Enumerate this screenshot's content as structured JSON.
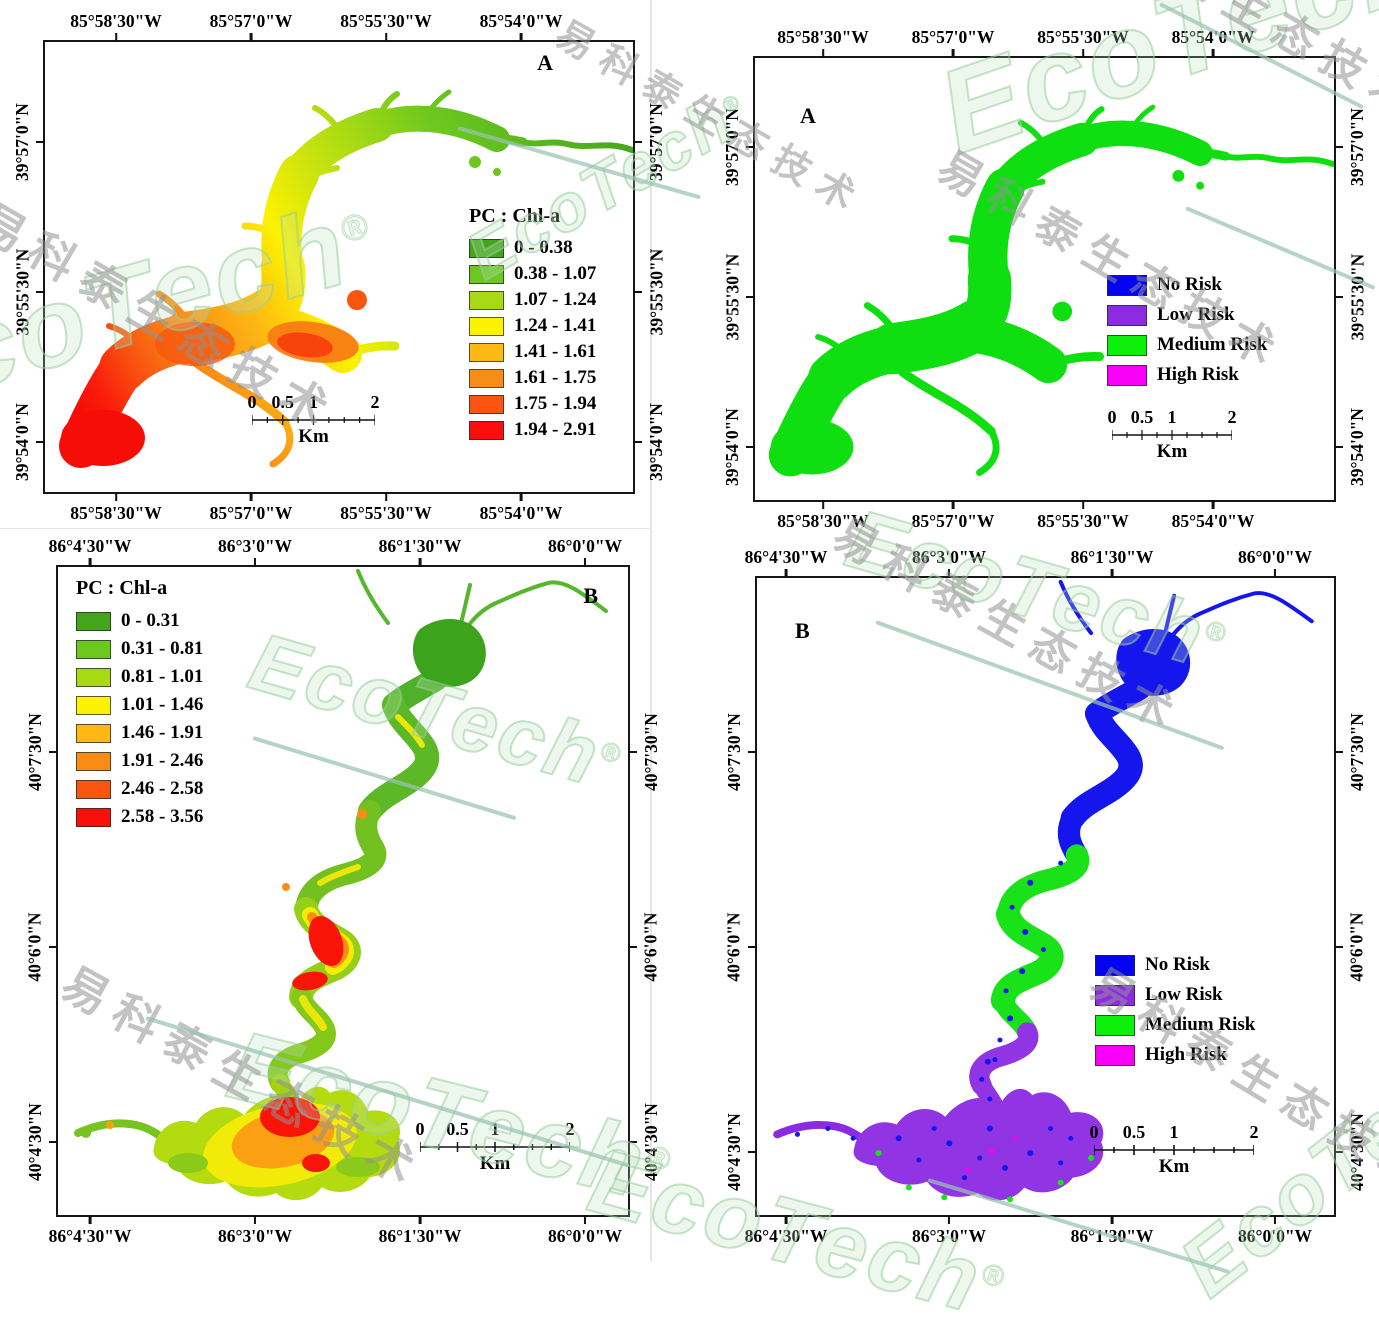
{
  "figure": {
    "watermark_text": "EcoTech",
    "watermark_reg": "®",
    "watermark_cn": "易科泰生态技术"
  },
  "scalebar": {
    "unit": "Km",
    "ticks": [
      {
        "label": "0",
        "pos": "0%"
      },
      {
        "label": "0.5",
        "pos": "25%"
      },
      {
        "label": "1",
        "pos": "50%"
      },
      {
        "label": "2",
        "pos": "100%"
      }
    ]
  },
  "panels": {
    "top_left": {
      "letter": "A",
      "legend_title": "PC : Chl-a",
      "legend_items": [
        {
          "range": "0 - 0.38",
          "color": "#44a51c"
        },
        {
          "range": "0.38 - 1.07",
          "color": "#6cc71e"
        },
        {
          "range": "1.07 - 1.24",
          "color": "#a8da14"
        },
        {
          "range": "1.24 - 1.41",
          "color": "#fcf200"
        },
        {
          "range": "1.41 - 1.61",
          "color": "#fdb813"
        },
        {
          "range": "1.61 - 1.75",
          "color": "#f98c16"
        },
        {
          "range": "1.75 - 1.94",
          "color": "#f95410"
        },
        {
          "range": "1.94 - 2.91",
          "color": "#fa0f0c"
        }
      ],
      "lon_labels": [
        "85°58'30\"W",
        "85°57'0\"W",
        "85°55'30\"W",
        "85°54'0\"W"
      ],
      "lat_labels": [
        "39°57'0\"N",
        "39°55'30\"N",
        "39°54'0\"N"
      ]
    },
    "top_right": {
      "letter": "A",
      "legend_items": [
        {
          "label": "No Risk",
          "color": "#0404f2"
        },
        {
          "label": "Low Risk",
          "color": "#8c2be2"
        },
        {
          "label": "Medium Risk",
          "color": "#0cf00c"
        },
        {
          "label": "High Risk",
          "color": "#f800f8"
        }
      ],
      "lon_labels": [
        "85°58'30\"W",
        "85°57'0\"W",
        "85°55'30\"W",
        "85°54'0\"W"
      ],
      "lat_labels": [
        "39°57'0\"N",
        "39°55'30\"N",
        "39°54'0\"N"
      ]
    },
    "bottom_left": {
      "letter": "B",
      "legend_title": "PC : Chl-a",
      "legend_items": [
        {
          "range": "0 - 0.31",
          "color": "#44a51c"
        },
        {
          "range": "0.31 - 0.81",
          "color": "#6cc71e"
        },
        {
          "range": "0.81 - 1.01",
          "color": "#a8da14"
        },
        {
          "range": "1.01 - 1.46",
          "color": "#fcf200"
        },
        {
          "range": "1.46 - 1.91",
          "color": "#fdb813"
        },
        {
          "range": "1.91 - 2.46",
          "color": "#f98c16"
        },
        {
          "range": "2.46 - 2.58",
          "color": "#f95410"
        },
        {
          "range": "2.58 - 3.56",
          "color": "#fa0f0c"
        }
      ],
      "lon_labels": [
        "86°4'30\"W",
        "86°3'0\"W",
        "86°1'30\"W",
        "86°0'0\"W"
      ],
      "lat_labels": [
        "40°7'30\"N",
        "40°6'0\"N",
        "40°4'30\"N"
      ]
    },
    "bottom_right": {
      "letter": "B",
      "legend_items": [
        {
          "label": "No Risk",
          "color": "#0404f2"
        },
        {
          "label": "Low Risk",
          "color": "#8c2be2"
        },
        {
          "label": "Medium Risk",
          "color": "#0cf00c"
        },
        {
          "label": "High Risk",
          "color": "#f800f8"
        }
      ],
      "lon_labels": [
        "86°4'30\"W",
        "86°3'0\"W",
        "86°1'30\"W",
        "86°0'0\"W"
      ],
      "lat_labels": [
        "40°7'30\"N",
        "40°6'0\"N",
        "40°4'30\"N"
      ]
    }
  }
}
